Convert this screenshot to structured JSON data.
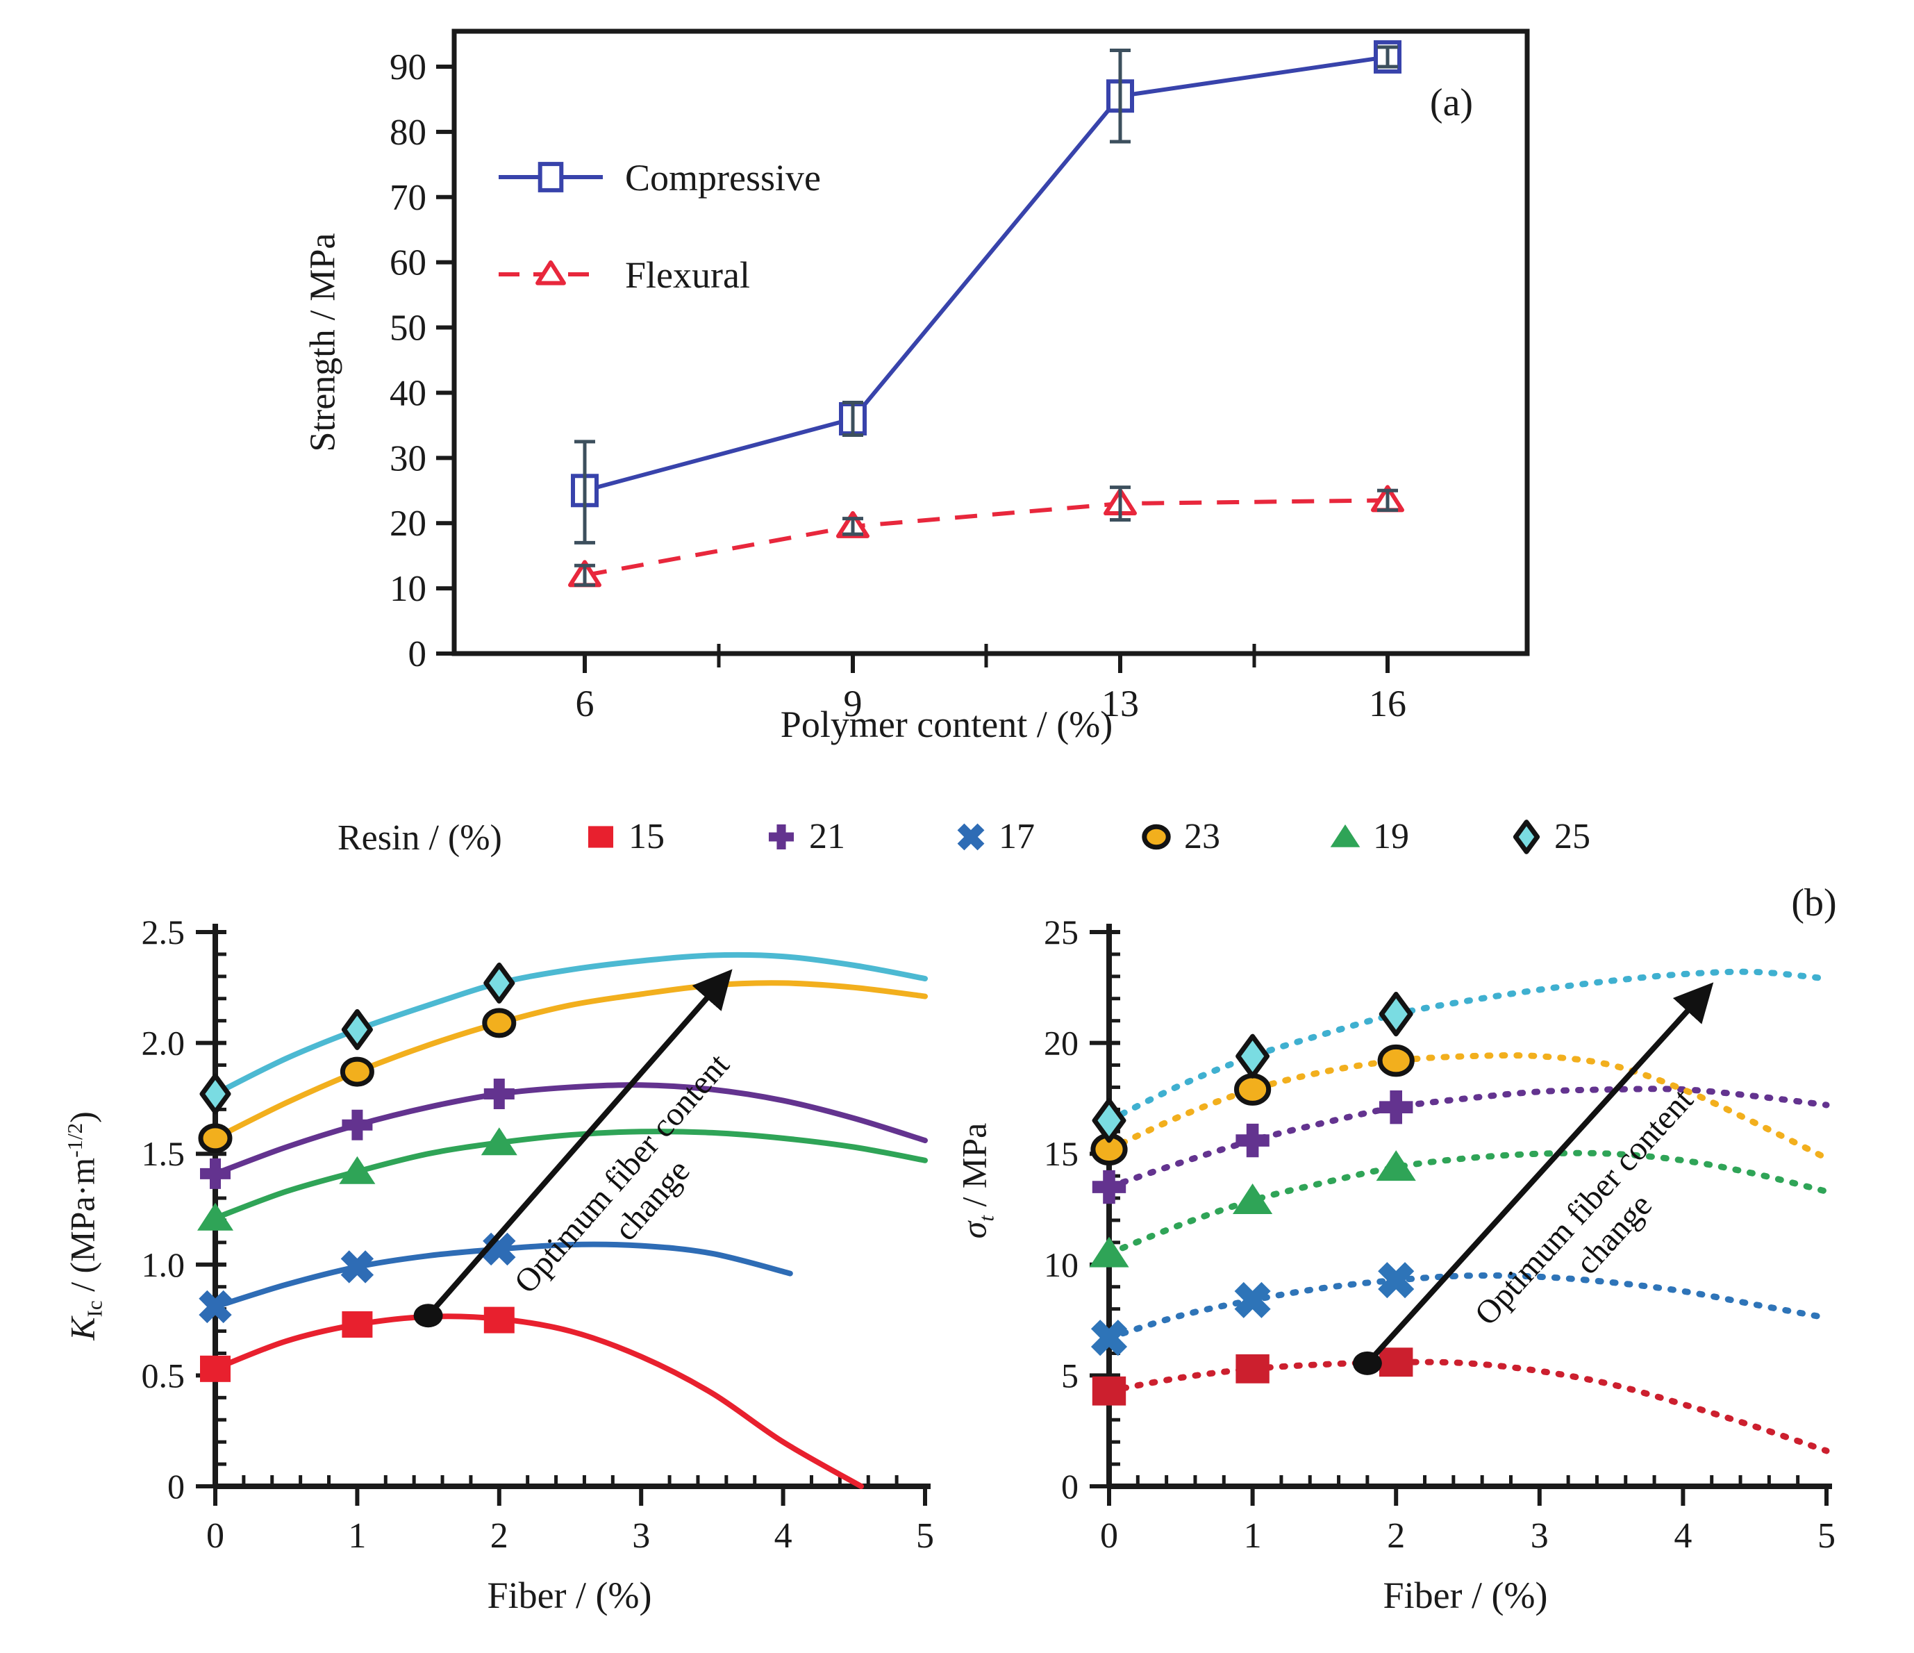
{
  "resin_legend": {
    "title": "Resin / (%)",
    "items": [
      {
        "label": "15",
        "marker": "square",
        "color": "#e8202e"
      },
      {
        "label": "21",
        "marker": "plus",
        "color": "#63338f"
      },
      {
        "label": "17",
        "marker": "xcross",
        "color": "#2e6cb5"
      },
      {
        "label": "23",
        "marker": "circle",
        "color": "#f2af1d",
        "edge": "#131313"
      },
      {
        "label": "19",
        "marker": "triangle",
        "color": "#2fa457"
      },
      {
        "label": "25",
        "marker": "diamond",
        "color": "#7adce2",
        "edge": "#131313"
      }
    ]
  },
  "chart_data": [
    {
      "panel_label": "(a)",
      "type": "line",
      "xlabel": "Polymer content / (%)",
      "ylabel": "Strength / MPa",
      "x_categories": [
        "6",
        "9",
        "13",
        "16"
      ],
      "ytick_labels": [
        "0",
        "10",
        "20",
        "30",
        "40",
        "50",
        "60",
        "70",
        "80",
        "90"
      ],
      "ylim": [
        0,
        95
      ],
      "grid": false,
      "legend_position": "upper-left",
      "error_color": "#3c4f5d",
      "series": [
        {
          "name": "Compressive",
          "color": "#3843ab",
          "line": "solid",
          "marker": "open-square",
          "values": [
            25,
            36,
            85.5,
            91.5
          ],
          "errors_minus": [
            8,
            2.5,
            7,
            1.5
          ],
          "errors_plus": [
            7.5,
            2.5,
            7,
            1.5
          ]
        },
        {
          "name": "Flexural",
          "color": "#e8273c",
          "line": "dashed",
          "marker": "open-triangle",
          "values": [
            12,
            19.5,
            23,
            23.5
          ],
          "errors_minus": [
            1.5,
            1.2,
            2.5,
            1.5
          ],
          "errors_plus": [
            1.5,
            1.2,
            2.5,
            1.5
          ]
        }
      ]
    },
    {
      "panel_label": "",
      "type": "line",
      "line_style": "solid",
      "xlabel": "Fiber / (%)",
      "ylabel": "K_Ic / (MPa·m^-1/2)",
      "ylabel_parts": [
        {
          "t": "K",
          "i": 1
        },
        {
          "t": "Ic",
          "sub": 1
        },
        {
          "t": " / (MPa·m"
        },
        {
          "t": "-1/2",
          "sup": 1
        },
        {
          "t": ")"
        }
      ],
      "xlim": [
        0,
        5
      ],
      "ylim": [
        0,
        2.5
      ],
      "xtick_labels": [
        "0",
        "1",
        "2",
        "3",
        "4",
        "5"
      ],
      "ytick_labels": [
        "0",
        "0.5",
        "1.0",
        "1.5",
        "2.0",
        "2.5"
      ],
      "annotation": {
        "text_lines": [
          "Optimum fiber content",
          "change"
        ],
        "dot": [
          1.5,
          0.77
        ],
        "arrow_tip": [
          3.68,
          2.36
        ]
      },
      "series": [
        {
          "name": "15",
          "color": "#e8202e",
          "marker": "square",
          "marker_points": [
            [
              0,
              0.53
            ],
            [
              1,
              0.73
            ],
            [
              2,
              0.75
            ]
          ],
          "curve": [
            [
              0,
              0.53
            ],
            [
              0.5,
              0.655
            ],
            [
              1,
              0.73
            ],
            [
              1.5,
              0.765
            ],
            [
              2,
              0.755
            ],
            [
              2.5,
              0.7
            ],
            [
              3,
              0.585
            ],
            [
              3.5,
              0.42
            ],
            [
              4,
              0.2
            ],
            [
              4.55,
              0.0
            ]
          ]
        },
        {
          "name": "17",
          "color": "#2e6cb5",
          "marker": "xcross",
          "marker_points": [
            [
              0,
              0.81
            ],
            [
              1,
              0.99
            ],
            [
              2,
              1.07
            ]
          ],
          "curve": [
            [
              0,
              0.81
            ],
            [
              0.5,
              0.91
            ],
            [
              1,
              0.99
            ],
            [
              1.5,
              1.04
            ],
            [
              2,
              1.07
            ],
            [
              2.5,
              1.09
            ],
            [
              3,
              1.085
            ],
            [
              3.5,
              1.05
            ],
            [
              4.05,
              0.96
            ]
          ]
        },
        {
          "name": "19",
          "color": "#2fa457",
          "marker": "triangle",
          "marker_points": [
            [
              0,
              1.21
            ],
            [
              1,
              1.42
            ],
            [
              2,
              1.55
            ]
          ],
          "curve": [
            [
              0,
              1.21
            ],
            [
              0.5,
              1.33
            ],
            [
              1,
              1.42
            ],
            [
              1.5,
              1.5
            ],
            [
              2,
              1.55
            ],
            [
              2.5,
              1.585
            ],
            [
              3,
              1.6
            ],
            [
              3.5,
              1.595
            ],
            [
              4,
              1.57
            ],
            [
              4.5,
              1.53
            ],
            [
              5,
              1.47
            ]
          ]
        },
        {
          "name": "21",
          "color": "#63338f",
          "marker": "plus",
          "marker_points": [
            [
              0,
              1.41
            ],
            [
              1,
              1.63
            ],
            [
              2,
              1.77
            ]
          ],
          "curve": [
            [
              0,
              1.41
            ],
            [
              0.5,
              1.53
            ],
            [
              1,
              1.63
            ],
            [
              1.5,
              1.71
            ],
            [
              2,
              1.77
            ],
            [
              2.5,
              1.8
            ],
            [
              3,
              1.81
            ],
            [
              3.5,
              1.79
            ],
            [
              4,
              1.74
            ],
            [
              4.5,
              1.66
            ],
            [
              5,
              1.56
            ]
          ]
        },
        {
          "name": "23",
          "color": "#f2af1d",
          "marker": "circle",
          "edge": "#131313",
          "marker_points": [
            [
              0,
              1.57
            ],
            [
              1,
              1.87
            ],
            [
              2,
              2.09
            ]
          ],
          "curve": [
            [
              0,
              1.57
            ],
            [
              0.5,
              1.73
            ],
            [
              1,
              1.87
            ],
            [
              1.5,
              1.99
            ],
            [
              2,
              2.09
            ],
            [
              2.5,
              2.17
            ],
            [
              3,
              2.22
            ],
            [
              3.5,
              2.26
            ],
            [
              4,
              2.27
            ],
            [
              4.5,
              2.25
            ],
            [
              5,
              2.21
            ]
          ]
        },
        {
          "name": "25",
          "color": "#4cb9d2",
          "marker": "diamond",
          "fill": "#7adce2",
          "edge": "#131313",
          "marker_points": [
            [
              0,
              1.77
            ],
            [
              1,
              2.06
            ],
            [
              2,
              2.27
            ]
          ],
          "curve": [
            [
              0,
              1.77
            ],
            [
              0.5,
              1.93
            ],
            [
              1,
              2.06
            ],
            [
              1.5,
              2.17
            ],
            [
              2,
              2.27
            ],
            [
              2.5,
              2.33
            ],
            [
              3,
              2.37
            ],
            [
              3.5,
              2.395
            ],
            [
              4,
              2.39
            ],
            [
              4.5,
              2.35
            ],
            [
              5,
              2.29
            ]
          ]
        }
      ]
    },
    {
      "panel_label": "(b)",
      "type": "line",
      "line_style": "dotted",
      "xlabel": "Fiber / (%)",
      "ylabel": "σ_t / MPa",
      "ylabel_parts": [
        {
          "t": "σ",
          "i": 1
        },
        {
          "t": "t",
          "sub": 1,
          "i": 1
        },
        {
          "t": " / MPa"
        }
      ],
      "xlim": [
        0,
        5
      ],
      "ylim": [
        0,
        25
      ],
      "xtick_labels": [
        "0",
        "1",
        "2",
        "3",
        "4",
        "5"
      ],
      "ytick_labels": [
        "0",
        "5",
        "10",
        "15",
        "20",
        "25"
      ],
      "annotation": {
        "text_lines": [
          "Optimum fiber content",
          "change"
        ],
        "dot": [
          1.8,
          5.55
        ],
        "arrow_tip": [
          4.25,
          23.0
        ]
      },
      "series": [
        {
          "name": "15",
          "color": "#cc1f2e",
          "marker": "square",
          "marker_points": [
            [
              0,
              4.3
            ],
            [
              1,
              5.3
            ],
            [
              2,
              5.6
            ]
          ],
          "curve": [
            [
              0,
              4.3
            ],
            [
              0.5,
              4.9
            ],
            [
              1,
              5.3
            ],
            [
              1.5,
              5.5
            ],
            [
              2,
              5.6
            ],
            [
              2.5,
              5.55
            ],
            [
              3,
              5.2
            ],
            [
              3.5,
              4.6
            ],
            [
              4,
              3.7
            ],
            [
              4.5,
              2.7
            ],
            [
              5,
              1.6
            ]
          ]
        },
        {
          "name": "17",
          "color": "#2e74b8",
          "marker": "xcross",
          "marker_points": [
            [
              0,
              6.7
            ],
            [
              1,
              8.4
            ],
            [
              2,
              9.3
            ]
          ],
          "curve": [
            [
              0,
              6.7
            ],
            [
              0.5,
              7.7
            ],
            [
              1,
              8.4
            ],
            [
              1.5,
              8.95
            ],
            [
              2,
              9.3
            ],
            [
              2.5,
              9.5
            ],
            [
              3,
              9.45
            ],
            [
              3.5,
              9.2
            ],
            [
              4,
              8.8
            ],
            [
              4.5,
              8.2
            ],
            [
              5,
              7.6
            ]
          ]
        },
        {
          "name": "19",
          "color": "#2fa457",
          "marker": "triangle",
          "marker_points": [
            [
              0,
              10.5
            ],
            [
              1,
              12.9
            ],
            [
              2,
              14.4
            ]
          ],
          "curve": [
            [
              0,
              10.5
            ],
            [
              0.5,
              11.8
            ],
            [
              1,
              12.9
            ],
            [
              1.5,
              13.7
            ],
            [
              2,
              14.4
            ],
            [
              2.5,
              14.8
            ],
            [
              3,
              15.0
            ],
            [
              3.5,
              15.0
            ],
            [
              4,
              14.7
            ],
            [
              4.5,
              14.1
            ],
            [
              5,
              13.3
            ]
          ]
        },
        {
          "name": "21",
          "color": "#63338f",
          "marker": "plus",
          "marker_points": [
            [
              0,
              13.5
            ],
            [
              1,
              15.6
            ],
            [
              2,
              17.1
            ]
          ],
          "curve": [
            [
              0,
              13.5
            ],
            [
              0.5,
              14.6
            ],
            [
              1,
              15.6
            ],
            [
              1.5,
              16.4
            ],
            [
              2,
              17.1
            ],
            [
              2.5,
              17.5
            ],
            [
              3,
              17.8
            ],
            [
              3.5,
              17.9
            ],
            [
              4,
              17.9
            ],
            [
              4.5,
              17.6
            ],
            [
              5,
              17.2
            ]
          ]
        },
        {
          "name": "23",
          "color": "#f2af1d",
          "marker": "circle",
          "edge": "#131313",
          "marker_points": [
            [
              0,
              15.2
            ],
            [
              1,
              17.9
            ],
            [
              2,
              19.2
            ]
          ],
          "curve": [
            [
              0,
              15.2
            ],
            [
              0.5,
              16.7
            ],
            [
              1,
              17.9
            ],
            [
              1.5,
              18.7
            ],
            [
              2,
              19.2
            ],
            [
              2.5,
              19.4
            ],
            [
              3,
              19.4
            ],
            [
              3.5,
              19.0
            ],
            [
              4,
              17.9
            ],
            [
              4.5,
              16.4
            ],
            [
              5,
              14.8
            ]
          ]
        },
        {
          "name": "25",
          "color": "#3fb0d0",
          "marker": "diamond",
          "fill": "#7adce2",
          "edge": "#131313",
          "marker_points": [
            [
              0,
              16.5
            ],
            [
              1,
              19.4
            ],
            [
              2,
              21.3
            ]
          ],
          "curve": [
            [
              0,
              16.5
            ],
            [
              0.5,
              18.1
            ],
            [
              1,
              19.4
            ],
            [
              1.5,
              20.4
            ],
            [
              2,
              21.3
            ],
            [
              2.5,
              21.9
            ],
            [
              3,
              22.4
            ],
            [
              3.5,
              22.8
            ],
            [
              4,
              23.1
            ],
            [
              4.5,
              23.2
            ],
            [
              5,
              22.9
            ]
          ]
        }
      ]
    }
  ]
}
